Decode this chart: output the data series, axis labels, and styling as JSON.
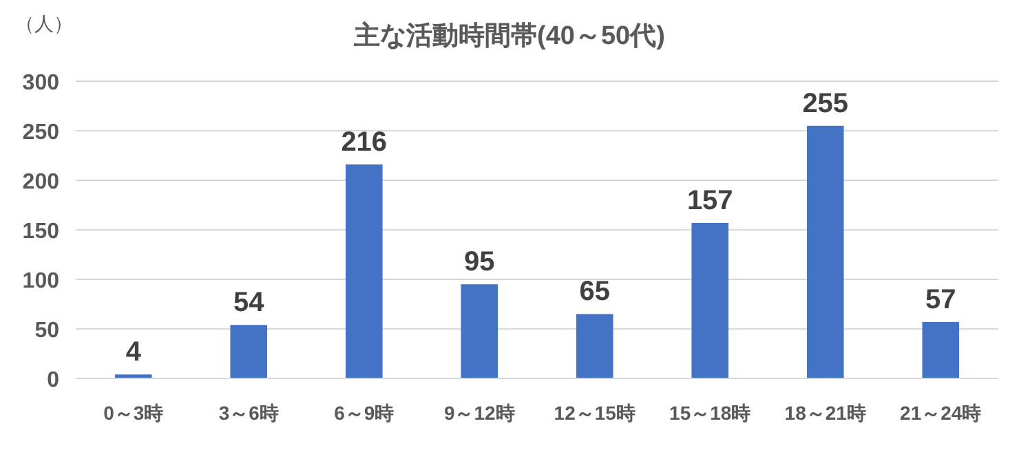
{
  "chart_data": {
    "type": "bar",
    "title": "主な活動時間帯(40～50代)",
    "ylabel": "（人）",
    "categories": [
      "0～3時",
      "3～6時",
      "6～9時",
      "9～12時",
      "12～15時",
      "15～18時",
      "18～21時",
      "21～24時"
    ],
    "values": [
      4,
      54,
      216,
      95,
      65,
      157,
      255,
      57
    ],
    "color": "#4472c4",
    "ylim": [
      0,
      300
    ],
    "yticks": [
      0,
      50,
      100,
      150,
      200,
      250,
      300
    ],
    "grid": "y",
    "data_labels": true
  }
}
